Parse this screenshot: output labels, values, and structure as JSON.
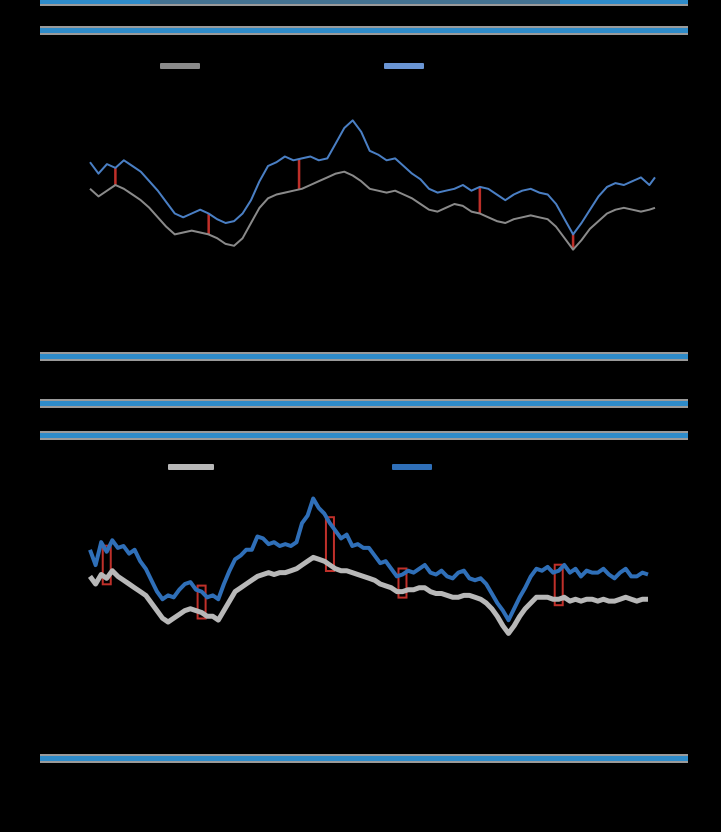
{
  "colors": {
    "background": "#000000",
    "rule": "#2e8bc9",
    "rule_border": "#9a9a9a",
    "series_a_top": "#4a7fc4",
    "series_b_top": "#8a8a8a",
    "series_a_bottom": "#2f6fb8",
    "series_b_bottom": "#b8b8b8",
    "spread": "#c0302a"
  },
  "chart_data": [
    {
      "type": "line",
      "grid": false,
      "legend_position": "top",
      "ylim": [
        0,
        100
      ],
      "xlim": [
        0,
        100
      ],
      "series": [
        {
          "color_key": "series_a_top",
          "x": [
            0,
            1.5,
            3,
            4.5,
            6,
            7.5,
            9,
            10.5,
            12,
            13.5,
            15,
            16.5,
            18,
            19.5,
            21,
            22.5,
            24,
            25.5,
            27,
            28.5,
            30,
            31.5,
            33,
            34.5,
            36,
            37.5,
            39,
            40.5,
            42,
            43.5,
            45,
            46.5,
            48,
            49.5,
            51,
            52.5,
            54,
            55.5,
            57,
            58.5,
            60,
            61.5,
            63,
            64.5,
            66,
            67.5,
            69,
            70.5,
            72,
            73.5,
            75,
            76.5,
            78,
            79.5,
            81,
            82.5,
            84,
            85.5,
            87,
            88.5,
            90,
            91.5,
            93,
            94.5,
            96,
            97.5,
            99,
            100
          ],
          "values": [
            62,
            56,
            61,
            59,
            63,
            60,
            57,
            52,
            47,
            41,
            35,
            33,
            35,
            37,
            35,
            32,
            30,
            31,
            35,
            42,
            52,
            60,
            62,
            65,
            63,
            64,
            65,
            63,
            64,
            72,
            80,
            84,
            78,
            68,
            66,
            63,
            64,
            60,
            56,
            53,
            48,
            46,
            47,
            48,
            50,
            47,
            49,
            48,
            45,
            42,
            45,
            47,
            48,
            46,
            45,
            40,
            32,
            24,
            30,
            37,
            44,
            49,
            51,
            50,
            52,
            54,
            50,
            54
          ]
        },
        {
          "color_key": "series_b_top",
          "x": [
            0,
            1.5,
            3,
            4.5,
            6,
            7.5,
            9,
            10.5,
            12,
            13.5,
            15,
            16.5,
            18,
            19.5,
            21,
            22.5,
            24,
            25.5,
            27,
            28.5,
            30,
            31.5,
            33,
            34.5,
            36,
            37.5,
            39,
            40.5,
            42,
            43.5,
            45,
            46.5,
            48,
            49.5,
            51,
            52.5,
            54,
            55.5,
            57,
            58.5,
            60,
            61.5,
            63,
            64.5,
            66,
            67.5,
            69,
            70.5,
            72,
            73.5,
            75,
            76.5,
            78,
            79.5,
            81,
            82.5,
            84,
            85.5,
            87,
            88.5,
            90,
            91.5,
            93,
            94.5,
            96,
            97.5,
            99,
            100
          ],
          "values": [
            48,
            44,
            47,
            50,
            48,
            45,
            42,
            38,
            33,
            28,
            24,
            25,
            26,
            25,
            24,
            22,
            19,
            18,
            22,
            30,
            38,
            43,
            45,
            46,
            47,
            48,
            50,
            52,
            54,
            56,
            57,
            55,
            52,
            48,
            47,
            46,
            47,
            45,
            43,
            40,
            37,
            36,
            38,
            40,
            39,
            36,
            35,
            33,
            31,
            30,
            32,
            33,
            34,
            33,
            32,
            28,
            22,
            16,
            21,
            27,
            31,
            35,
            37,
            38,
            37,
            36,
            37,
            38
          ]
        }
      ],
      "spread_markers_x": [
        4.5,
        21,
        37,
        69,
        85.5
      ]
    },
    {
      "type": "line",
      "grid": false,
      "legend_position": "top",
      "ylim": [
        0,
        100
      ],
      "xlim": [
        0,
        100
      ],
      "series": [
        {
          "color_key": "series_a_bottom",
          "x": [
            0,
            1,
            2,
            3,
            4,
            5,
            6,
            7,
            8,
            9,
            10,
            11,
            12,
            13,
            14,
            15,
            16,
            17,
            18,
            19,
            20,
            21,
            22,
            23,
            24,
            25,
            26,
            27,
            28,
            29,
            30,
            31,
            32,
            33,
            34,
            35,
            36,
            37,
            38,
            39,
            40,
            41,
            42,
            43,
            44,
            45,
            46,
            47,
            48,
            49,
            50,
            51,
            52,
            53,
            54,
            55,
            56,
            57,
            58,
            59,
            60,
            61,
            62,
            63,
            64,
            65,
            66,
            67,
            68,
            69,
            70,
            71,
            72,
            73,
            74,
            75,
            76,
            77,
            78,
            79,
            80,
            81,
            82,
            83,
            84,
            85,
            86,
            87,
            88,
            89,
            90,
            91,
            92,
            93,
            94,
            95,
            96,
            97,
            98,
            99,
            100
          ],
          "values": [
            58,
            50,
            62,
            57,
            63,
            59,
            60,
            56,
            58,
            52,
            48,
            42,
            36,
            32,
            34,
            33,
            37,
            40,
            41,
            37,
            36,
            33,
            34,
            32,
            40,
            47,
            53,
            55,
            58,
            58,
            65,
            64,
            61,
            62,
            60,
            61,
            60,
            62,
            72,
            76,
            85,
            80,
            77,
            72,
            68,
            64,
            66,
            60,
            61,
            59,
            59,
            55,
            51,
            52,
            48,
            44,
            45,
            47,
            46,
            48,
            50,
            46,
            45,
            47,
            44,
            43,
            46,
            47,
            43,
            42,
            43,
            40,
            35,
            30,
            26,
            21,
            27,
            33,
            38,
            44,
            48,
            47,
            49,
            46,
            47,
            50,
            46,
            48,
            44,
            47,
            46,
            46,
            48,
            45,
            43,
            46,
            48,
            44,
            44,
            46,
            45
          ]
        },
        {
          "color_key": "series_b_bottom",
          "x": [
            0,
            1,
            2,
            3,
            4,
            5,
            6,
            7,
            8,
            9,
            10,
            11,
            12,
            13,
            14,
            15,
            16,
            17,
            18,
            19,
            20,
            21,
            22,
            23,
            24,
            25,
            26,
            27,
            28,
            29,
            30,
            31,
            32,
            33,
            34,
            35,
            36,
            37,
            38,
            39,
            40,
            41,
            42,
            43,
            44,
            45,
            46,
            47,
            48,
            49,
            50,
            51,
            52,
            53,
            54,
            55,
            56,
            57,
            58,
            59,
            60,
            61,
            62,
            63,
            64,
            65,
            66,
            67,
            68,
            69,
            70,
            71,
            72,
            73,
            74,
            75,
            76,
            77,
            78,
            79,
            80,
            81,
            82,
            83,
            84,
            85,
            86,
            87,
            88,
            89,
            90,
            91,
            92,
            93,
            94,
            95,
            96,
            97,
            98,
            99,
            100
          ],
          "values": [
            44,
            40,
            45,
            43,
            47,
            44,
            42,
            40,
            38,
            36,
            34,
            30,
            26,
            22,
            20,
            22,
            24,
            26,
            27,
            26,
            25,
            23,
            23,
            21,
            26,
            31,
            36,
            38,
            40,
            42,
            44,
            45,
            46,
            45,
            46,
            46,
            47,
            48,
            50,
            52,
            54,
            53,
            52,
            50,
            48,
            47,
            47,
            46,
            45,
            44,
            43,
            42,
            40,
            39,
            38,
            36,
            36,
            37,
            37,
            38,
            38,
            36,
            35,
            35,
            34,
            33,
            33,
            34,
            34,
            33,
            32,
            30,
            27,
            23,
            18,
            14,
            18,
            23,
            27,
            30,
            33,
            33,
            33,
            32,
            32,
            33,
            31,
            32,
            31,
            32,
            32,
            31,
            32,
            31,
            31,
            32,
            33,
            32,
            31,
            32,
            32
          ]
        }
      ],
      "spread_markers_x": [
        3,
        20,
        43,
        56,
        84
      ]
    }
  ]
}
